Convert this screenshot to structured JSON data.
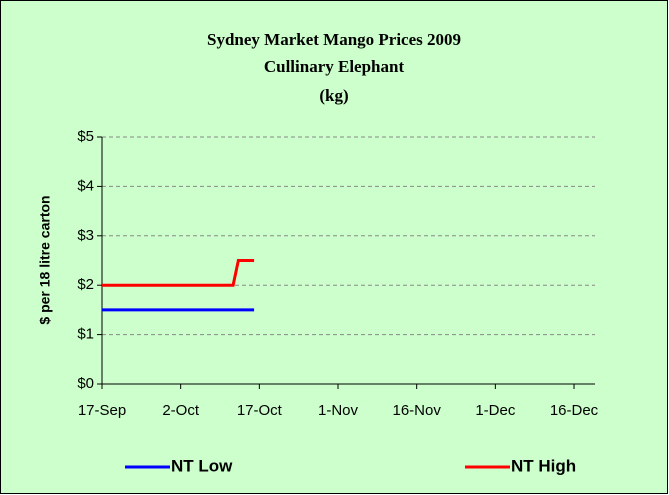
{
  "chart_data": {
    "type": "line",
    "title": [
      "Sydney Market Mango Prices 2009",
      "Cullinary Elephant",
      "(kg)"
    ],
    "ylabel": "$ per 18 litre carton",
    "xlim": [
      260,
      354
    ],
    "xticks": [
      {
        "value": 260,
        "label": "17-Sep"
      },
      {
        "value": 275,
        "label": "2-Oct"
      },
      {
        "value": 290,
        "label": "17-Oct"
      },
      {
        "value": 305,
        "label": "1-Nov"
      },
      {
        "value": 320,
        "label": "16-Nov"
      },
      {
        "value": 335,
        "label": "1-Dec"
      },
      {
        "value": 350,
        "label": "16-Dec"
      }
    ],
    "ylim": [
      0,
      5
    ],
    "yticks": [
      {
        "value": 0,
        "label": "$0"
      },
      {
        "value": 1,
        "label": "$1"
      },
      {
        "value": 2,
        "label": "$2"
      },
      {
        "value": 3,
        "label": "$3"
      },
      {
        "value": 4,
        "label": "$4"
      },
      {
        "value": 5,
        "label": "$5"
      }
    ],
    "grid": true,
    "legend": "bottom",
    "series": [
      {
        "name": "NT Low",
        "color": "#0000ff",
        "x": [
          260,
          289
        ],
        "values": [
          1.5,
          1.5
        ]
      },
      {
        "name": "NT High",
        "color": "#ff0000",
        "x": [
          260,
          285,
          286,
          289
        ],
        "values": [
          2,
          2,
          2.5,
          2.5
        ]
      }
    ]
  }
}
